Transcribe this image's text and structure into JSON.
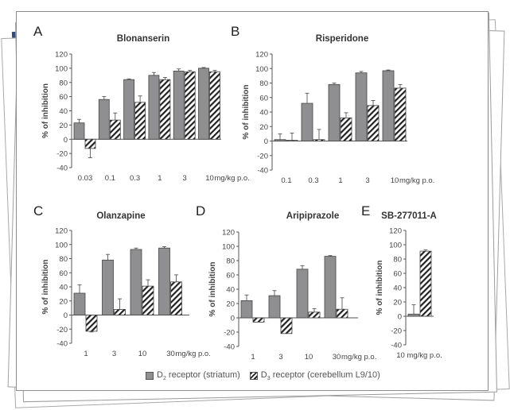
{
  "legend": {
    "d2_prefix": "D",
    "d2_sub": "2",
    "d2_suffix": " receptor (striatum)",
    "d3_prefix": "D",
    "d3_sub": "3",
    "d3_suffix": " receptor (cerebellum L9/10)"
  },
  "colors": {
    "d2_bar": "#8f8f91",
    "d3_hatch": "#222222",
    "axis": "#555555",
    "sheet_accent_blue": "#2d4a7a",
    "sheet_accent_gold": "#9a8416"
  },
  "chart_data": [
    {
      "type": "bar",
      "panel_label": "A",
      "title": "Blonanserin",
      "ylabel": "% of inhibition",
      "xlabel_suffix": "mg/kg p.o.",
      "ylim": [
        -40,
        120
      ],
      "yticks": [
        -40,
        -20,
        0,
        20,
        40,
        60,
        80,
        100,
        120
      ],
      "categories": [
        "0.03",
        "0.1",
        "0.3",
        "1",
        "3",
        "10"
      ],
      "series": [
        {
          "name": "D2 receptor (striatum)",
          "values": [
            23,
            56,
            84,
            90,
            96,
            100
          ],
          "errors": [
            5,
            4,
            1,
            4,
            3,
            1
          ]
        },
        {
          "name": "D3 receptor (cerebellum L9/10)",
          "values": [
            -13,
            27,
            52,
            84,
            95,
            95
          ],
          "errors": [
            13,
            10,
            9,
            3,
            2,
            2
          ]
        }
      ]
    },
    {
      "type": "bar",
      "panel_label": "B",
      "title": "Risperidone",
      "ylabel": "% of inhibition",
      "xlabel_suffix": "mg/kg p.o.",
      "ylim": [
        -40,
        120
      ],
      "yticks": [
        -40,
        -20,
        0,
        20,
        40,
        60,
        80,
        100,
        120
      ],
      "categories": [
        "0.1",
        "0.3",
        "1",
        "3",
        "10"
      ],
      "series": [
        {
          "name": "D2 receptor (striatum)",
          "values": [
            2,
            52,
            78,
            94,
            97
          ],
          "errors": [
            8,
            14,
            2,
            2,
            1
          ]
        },
        {
          "name": "D3 receptor (cerebellum L9/10)",
          "values": [
            1,
            2,
            32,
            49,
            73
          ],
          "errors": [
            10,
            14,
            7,
            7,
            5
          ]
        }
      ]
    },
    {
      "type": "bar",
      "panel_label": "C",
      "title": "Olanzapine",
      "ylabel": "% of inhibition",
      "xlabel_suffix": "mg/kg p.o.",
      "ylim": [
        -40,
        120
      ],
      "yticks": [
        -40,
        -20,
        0,
        20,
        40,
        60,
        80,
        100,
        120
      ],
      "categories": [
        "1",
        "3",
        "10",
        "30"
      ],
      "series": [
        {
          "name": "D2 receptor (striatum)",
          "values": [
            31,
            78,
            93,
            95
          ],
          "errors": [
            12,
            8,
            2,
            2
          ]
        },
        {
          "name": "D3 receptor (cerebellum L9/10)",
          "values": [
            -23,
            8,
            41,
            47
          ],
          "errors": [
            1,
            15,
            9,
            10
          ]
        }
      ]
    },
    {
      "type": "bar",
      "panel_label": "D",
      "title": "Aripiprazole",
      "ylabel": "% of inhibition",
      "xlabel_suffix": "mg/kg p.o.",
      "ylim": [
        -40,
        120
      ],
      "yticks": [
        -40,
        -20,
        0,
        20,
        40,
        60,
        80,
        100,
        120
      ],
      "categories": [
        "1",
        "3",
        "10",
        "30"
      ],
      "series": [
        {
          "name": "D2 receptor (striatum)",
          "values": [
            24,
            31,
            68,
            86
          ],
          "errors": [
            8,
            7,
            5,
            1
          ]
        },
        {
          "name": "D3 receptor (cerebellum L9/10)",
          "values": [
            -6,
            -22,
            8,
            12
          ],
          "errors": [
            0,
            0,
            5,
            16
          ]
        }
      ]
    },
    {
      "type": "bar",
      "panel_label": "E",
      "title": "SB-277011-A",
      "ylabel": "% of inhibition",
      "xlabel_suffix": "mg/kg p.o.",
      "ylim": [
        -40,
        120
      ],
      "yticks": [
        -40,
        -20,
        0,
        20,
        40,
        60,
        80,
        100,
        120
      ],
      "categories": [
        "10 mg/kg p.o."
      ],
      "series": [
        {
          "name": "D2 receptor (striatum)",
          "values": [
            3
          ],
          "errors": [
            13
          ]
        },
        {
          "name": "D3 receptor (cerebellum L9/10)",
          "values": [
            91
          ],
          "errors": [
            2
          ]
        }
      ]
    }
  ]
}
